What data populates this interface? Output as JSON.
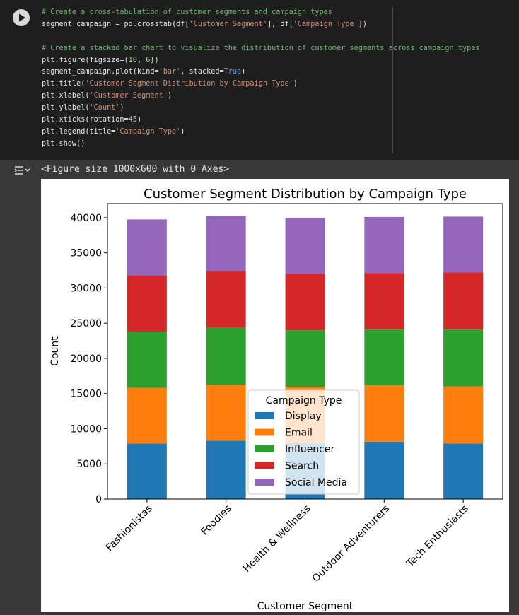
{
  "code": {
    "lines": [
      [
        {
          "t": "comment",
          "v": "# Create a cross-tabulation of customer segments and campaign types"
        }
      ],
      [
        {
          "t": "plain",
          "v": "segment_campaign = pd.crosstab(df["
        },
        {
          "t": "string",
          "v": "'Customer_Segment'"
        },
        {
          "t": "plain",
          "v": "], df["
        },
        {
          "t": "string",
          "v": "'Campaign_Type'"
        },
        {
          "t": "plain",
          "v": "])"
        }
      ],
      [
        {
          "t": "plain",
          "v": ""
        }
      ],
      [
        {
          "t": "comment",
          "v": "# Create a stacked bar chart to visualize the distribution of customer segments across campaign types"
        }
      ],
      [
        {
          "t": "plain",
          "v": "plt.figure(figsize=("
        },
        {
          "t": "num",
          "v": "10"
        },
        {
          "t": "plain",
          "v": ", "
        },
        {
          "t": "num",
          "v": "6"
        },
        {
          "t": "plain",
          "v": "))"
        }
      ],
      [
        {
          "t": "plain",
          "v": "segment_campaign.plot(kind="
        },
        {
          "t": "string",
          "v": "'bar'"
        },
        {
          "t": "plain",
          "v": ", stacked="
        },
        {
          "t": "kw",
          "v": "True"
        },
        {
          "t": "plain",
          "v": ")"
        }
      ],
      [
        {
          "t": "plain",
          "v": "plt.title("
        },
        {
          "t": "string",
          "v": "'Customer Segment Distribution by Campaign Type'"
        },
        {
          "t": "plain",
          "v": ")"
        }
      ],
      [
        {
          "t": "plain",
          "v": "plt.xlabel("
        },
        {
          "t": "string",
          "v": "'Customer Segment'"
        },
        {
          "t": "plain",
          "v": ")"
        }
      ],
      [
        {
          "t": "plain",
          "v": "plt.ylabel("
        },
        {
          "t": "string",
          "v": "'Count'"
        },
        {
          "t": "plain",
          "v": ")"
        }
      ],
      [
        {
          "t": "plain",
          "v": "plt.xticks(rotation="
        },
        {
          "t": "num",
          "v": "45"
        },
        {
          "t": "plain",
          "v": ")"
        }
      ],
      [
        {
          "t": "plain",
          "v": "plt.legend(title="
        },
        {
          "t": "string",
          "v": "'Campaign Type'"
        },
        {
          "t": "plain",
          "v": ")"
        }
      ],
      [
        {
          "t": "plain",
          "v": "plt.show()"
        }
      ]
    ]
  },
  "output": {
    "text": "<Figure size 1000x600 with 0 Axes>"
  },
  "chart_data": {
    "type": "bar",
    "stacked": true,
    "title": "Customer Segment Distribution by Campaign Type",
    "xlabel": "Customer Segment",
    "ylabel": "Count",
    "ylim": [
      0,
      42000
    ],
    "yticks": [
      0,
      5000,
      10000,
      15000,
      20000,
      25000,
      30000,
      35000,
      40000
    ],
    "categories": [
      "Fashionistas",
      "Foodies",
      "Health & Wellness",
      "Outdoor Adventurers",
      "Tech Enthusiasts"
    ],
    "series": [
      {
        "name": "Display",
        "color": "#1f77b4",
        "values": [
          7900,
          8300,
          7950,
          8150,
          7900
        ]
      },
      {
        "name": "Email",
        "color": "#ff7f0e",
        "values": [
          7900,
          7950,
          8000,
          8000,
          8100
        ]
      },
      {
        "name": "Influencer",
        "color": "#2ca02c",
        "values": [
          8000,
          8100,
          8050,
          7950,
          8100
        ]
      },
      {
        "name": "Search",
        "color": "#d62728",
        "values": [
          7950,
          8000,
          8000,
          8000,
          8100
        ]
      },
      {
        "name": "Social Media",
        "color": "#9467bd",
        "values": [
          8000,
          7850,
          7950,
          8000,
          7950
        ]
      }
    ],
    "legend": {
      "title": "Campaign Type",
      "placement": "center-bottom"
    },
    "grid": false
  }
}
